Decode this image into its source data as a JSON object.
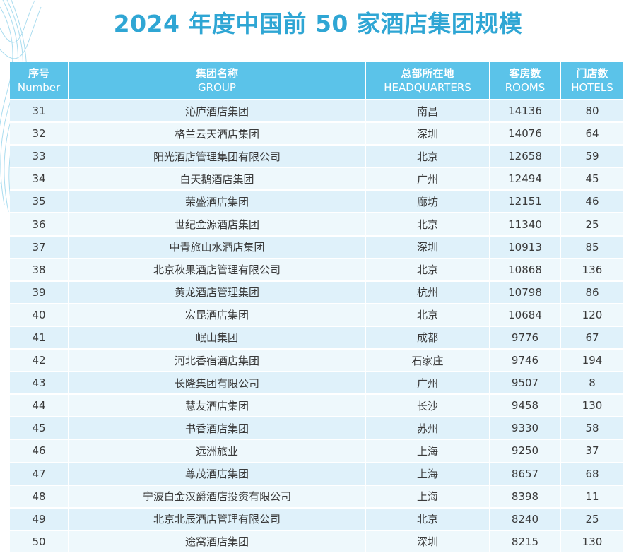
{
  "title": "2024 年度中国前 50 家酒店集团规模",
  "colors": {
    "title": "#2fa6d4",
    "header_bg": "#5bc3e9",
    "row_bg_a": "#dff1fa",
    "row_bg_b": "#eef8fc"
  },
  "columns": [
    {
      "zh": "序号",
      "en": "Number"
    },
    {
      "zh": "集团名称",
      "en": "GROUP"
    },
    {
      "zh": "总部所在地",
      "en": "HEADQUARTERS"
    },
    {
      "zh": "客房数",
      "en": "ROOMS"
    },
    {
      "zh": "门店数",
      "en": "HOTELS"
    }
  ],
  "rows": [
    {
      "no": "31",
      "group": "沁庐酒店集团",
      "hq": "南昌",
      "rooms": "14136",
      "hotels": "80"
    },
    {
      "no": "32",
      "group": "格兰云天酒店集团",
      "hq": "深圳",
      "rooms": "14076",
      "hotels": "64"
    },
    {
      "no": "33",
      "group": "阳光酒店管理集团有限公司",
      "hq": "北京",
      "rooms": "12658",
      "hotels": "59"
    },
    {
      "no": "34",
      "group": "白天鹅酒店集团",
      "hq": "广州",
      "rooms": "12494",
      "hotels": "45"
    },
    {
      "no": "35",
      "group": "荣盛酒店集团",
      "hq": "廊坊",
      "rooms": "12151",
      "hotels": "46"
    },
    {
      "no": "36",
      "group": "世纪金源酒店集团",
      "hq": "北京",
      "rooms": "11340",
      "hotels": "25"
    },
    {
      "no": "37",
      "group": "中青旅山水酒店集团",
      "hq": "深圳",
      "rooms": "10913",
      "hotels": "85"
    },
    {
      "no": "38",
      "group": "北京秋果酒店管理有限公司",
      "hq": "北京",
      "rooms": "10868",
      "hotels": "136"
    },
    {
      "no": "39",
      "group": "黄龙酒店管理集团",
      "hq": "杭州",
      "rooms": "10798",
      "hotels": "86"
    },
    {
      "no": "40",
      "group": "宏昆酒店集团",
      "hq": "北京",
      "rooms": "10684",
      "hotels": "120"
    },
    {
      "no": "41",
      "group": "岷山集团",
      "hq": "成都",
      "rooms": "9776",
      "hotels": "67"
    },
    {
      "no": "42",
      "group": "河北香宿酒店集团",
      "hq": "石家庄",
      "rooms": "9746",
      "hotels": "194"
    },
    {
      "no": "43",
      "group": "长隆集团有限公司",
      "hq": "广州",
      "rooms": "9507",
      "hotels": "8"
    },
    {
      "no": "44",
      "group": "慧友酒店集团",
      "hq": "长沙",
      "rooms": "9458",
      "hotels": "130"
    },
    {
      "no": "45",
      "group": "书香酒店集团",
      "hq": "苏州",
      "rooms": "9330",
      "hotels": "58"
    },
    {
      "no": "46",
      "group": "远洲旅业",
      "hq": "上海",
      "rooms": "9250",
      "hotels": "37"
    },
    {
      "no": "47",
      "group": "尊茂酒店集团",
      "hq": "上海",
      "rooms": "8657",
      "hotels": "68"
    },
    {
      "no": "48",
      "group": "宁波白金汉爵酒店投资有限公司",
      "hq": "上海",
      "rooms": "8398",
      "hotels": "11"
    },
    {
      "no": "49",
      "group": "北京北辰酒店管理有限公司",
      "hq": "北京",
      "rooms": "8240",
      "hotels": "25"
    },
    {
      "no": "50",
      "group": "途窝酒店集团",
      "hq": "深圳",
      "rooms": "8215",
      "hotels": "130"
    }
  ]
}
